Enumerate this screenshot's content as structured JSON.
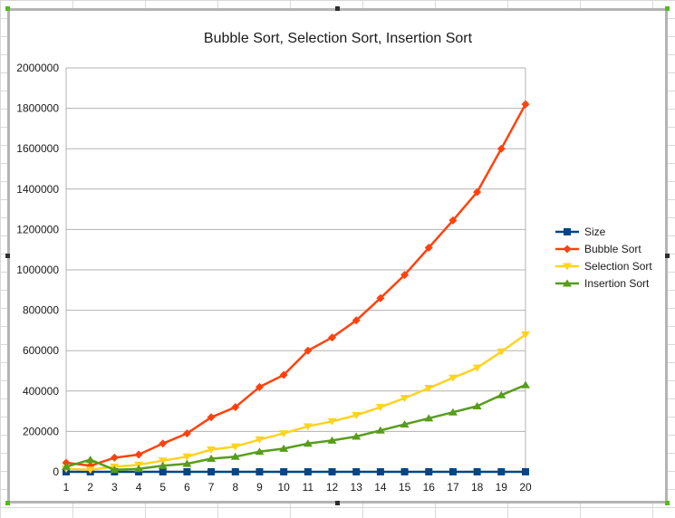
{
  "chart_data": {
    "type": "line",
    "title": "Bubble Sort, Selection Sort, Insertion Sort",
    "xlabel": "",
    "ylabel": "",
    "categories": [
      "1",
      "2",
      "3",
      "4",
      "5",
      "6",
      "7",
      "8",
      "9",
      "10",
      "11",
      "12",
      "13",
      "14",
      "15",
      "16",
      "17",
      "18",
      "19",
      "20"
    ],
    "ylim": [
      0,
      2000000
    ],
    "yticks": [
      0,
      200000,
      400000,
      600000,
      800000,
      1000000,
      1200000,
      1400000,
      1600000,
      1800000,
      2000000
    ],
    "grid": true,
    "legend_position": "right",
    "series": [
      {
        "name": "Size",
        "color": "#004586",
        "marker": "square",
        "values": [
          10,
          20,
          30,
          40,
          50,
          60,
          70,
          80,
          90,
          100,
          110,
          120,
          130,
          140,
          150,
          160,
          170,
          180,
          190,
          200
        ]
      },
      {
        "name": "Bubble Sort",
        "color": "#ff420e",
        "marker": "diamond",
        "values": [
          45000,
          30000,
          70000,
          85000,
          140000,
          190000,
          270000,
          320000,
          420000,
          480000,
          600000,
          665000,
          750000,
          860000,
          975000,
          1110000,
          1245000,
          1385000,
          1600000,
          1820000
        ]
      },
      {
        "name": "Selection Sort",
        "color": "#ffd320",
        "marker": "triangle-down",
        "values": [
          15000,
          10000,
          25000,
          35000,
          55000,
          75000,
          110000,
          125000,
          160000,
          190000,
          225000,
          250000,
          280000,
          320000,
          365000,
          415000,
          465000,
          515000,
          595000,
          680000
        ]
      },
      {
        "name": "Insertion Sort",
        "color": "#579d1c",
        "marker": "triangle-up",
        "values": [
          25000,
          60000,
          10000,
          15000,
          30000,
          40000,
          65000,
          75000,
          100000,
          115000,
          140000,
          155000,
          175000,
          205000,
          235000,
          265000,
          295000,
          325000,
          380000,
          430000
        ]
      }
    ]
  }
}
